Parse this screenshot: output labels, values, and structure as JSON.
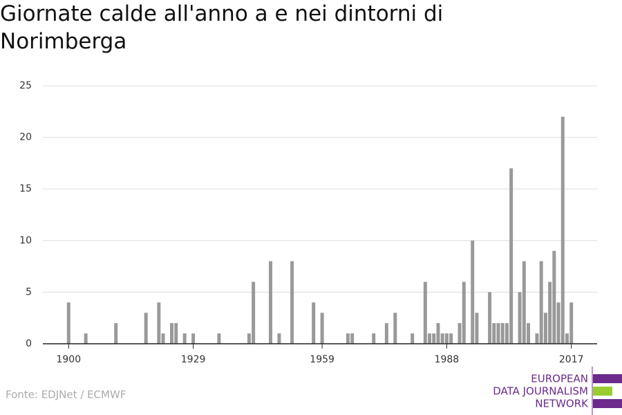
{
  "chart_data": {
    "type": "bar",
    "title": "Giornate calde all'anno a e nei dintorni di Norimberga",
    "x": [
      1900,
      1904,
      1911,
      1918,
      1921,
      1922,
      1924,
      1925,
      1927,
      1929,
      1935,
      1942,
      1943,
      1947,
      1949,
      1952,
      1957,
      1959,
      1965,
      1966,
      1971,
      1974,
      1976,
      1980,
      1983,
      1984,
      1985,
      1986,
      1987,
      1988,
      1989,
      1991,
      1992,
      1994,
      1995,
      1998,
      1999,
      2000,
      2001,
      2002,
      2003,
      2005,
      2006,
      2007,
      2009,
      2010,
      2011,
      2012,
      2013,
      2014,
      2015,
      2016,
      2017
    ],
    "values": [
      4,
      1,
      2,
      3,
      4,
      1,
      2,
      2,
      1,
      1,
      1,
      1,
      6,
      8,
      1,
      8,
      4,
      3,
      1,
      1,
      1,
      2,
      3,
      1,
      6,
      1,
      1,
      2,
      1,
      1,
      1,
      2,
      6,
      10,
      3,
      5,
      2,
      2,
      2,
      2,
      17,
      5,
      8,
      2,
      1,
      8,
      3,
      6,
      9,
      4,
      22,
      1,
      4
    ],
    "color": "#999999",
    "xlim": [
      1894,
      2023
    ],
    "xticks": [
      1900,
      1929,
      1959,
      1988,
      2017
    ],
    "ylim": [
      0,
      25
    ],
    "yticks": [
      0,
      5,
      10,
      15,
      20,
      25
    ],
    "grid": true,
    "source": "Fonte: EDJNet / ECMWF",
    "logo": [
      "EUROPEAN",
      "DATA JOURNALISM",
      "NETWORK"
    ]
  }
}
